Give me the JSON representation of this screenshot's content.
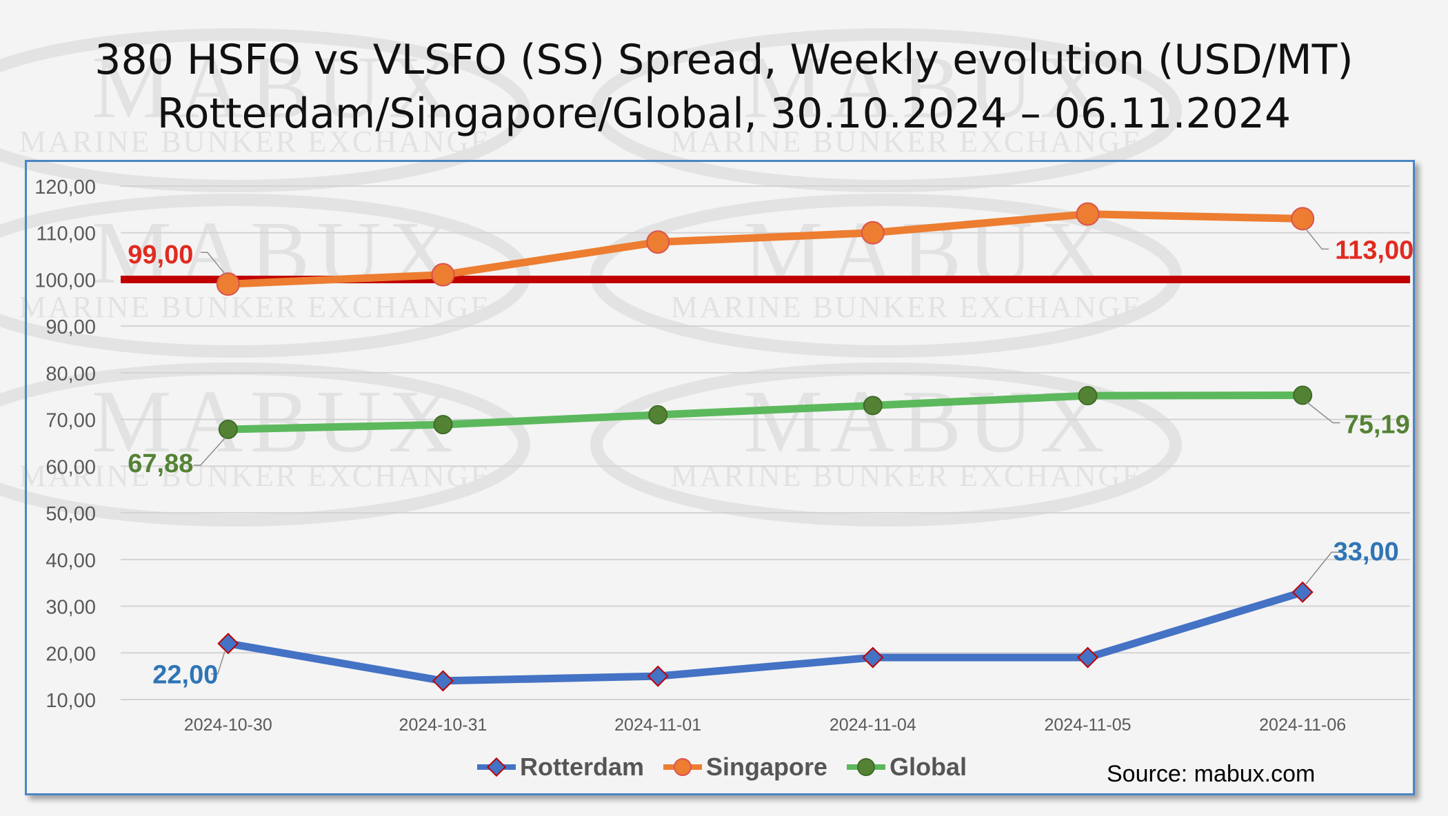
{
  "title": {
    "line1": "380 HSFO vs VLSFO (SS) Spread, Weekly evolution (USD/MT)",
    "line2": "Rotterdam/Singapore/Global, 30.10.2024 – 06.11.2024"
  },
  "watermark": {
    "brand": "MABUX",
    "tagline": "MARINE BUNKER EXCHANGE"
  },
  "source": "Source: mabux.com",
  "chart_data": {
    "type": "line",
    "categories": [
      "2024-10-30",
      "2024-10-31",
      "2024-11-01",
      "2024-11-04",
      "2024-11-05",
      "2024-11-06"
    ],
    "y_ticks": [
      "10,00",
      "20,00",
      "30,00",
      "40,00",
      "50,00",
      "60,00",
      "70,00",
      "80,00",
      "90,00",
      "100,00",
      "110,00",
      "120,00"
    ],
    "ylim": [
      10,
      120
    ],
    "grid": "horizontal",
    "legend_position": "bottom",
    "reference_line": {
      "value": 100,
      "color": "#c00000"
    },
    "series": [
      {
        "name": "Rotterdam",
        "marker": "diamond",
        "color": "#4472c4",
        "values": [
          22,
          14,
          15,
          19,
          19,
          33
        ],
        "labels": [
          {
            "index": 0,
            "text": "22,00",
            "color": "#2e75b6"
          },
          {
            "index": 5,
            "text": "33,00",
            "color": "#2e75b6"
          }
        ]
      },
      {
        "name": "Singapore",
        "marker": "circle",
        "color": "#ed7d31",
        "values": [
          99,
          101,
          108,
          110,
          114,
          113
        ],
        "labels": [
          {
            "index": 0,
            "text": "99,00",
            "color": "#e02b20"
          },
          {
            "index": 5,
            "text": "113,00",
            "color": "#e02b20"
          }
        ]
      },
      {
        "name": "Global",
        "marker": "circle",
        "color": "#5cb85c",
        "values": [
          67.88,
          68.9,
          71,
          73,
          75.1,
          75.19
        ],
        "labels": [
          {
            "index": 0,
            "text": "67,88",
            "color": "#548235"
          },
          {
            "index": 5,
            "text": "75,19",
            "color": "#548235"
          }
        ]
      }
    ]
  }
}
